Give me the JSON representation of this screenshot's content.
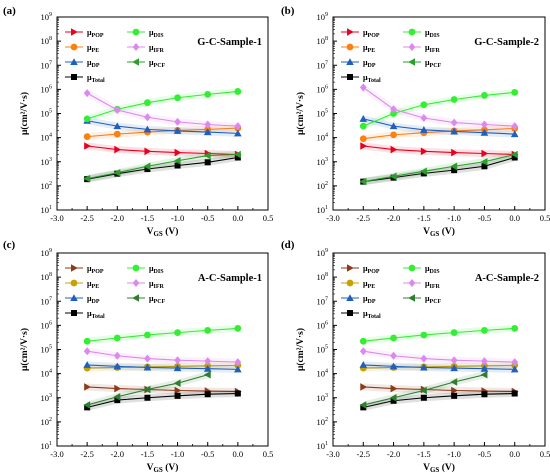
{
  "chart_data": [
    {
      "type": "line",
      "panel_label": "(a)",
      "title": "G-C-Sample-1",
      "xlabel": "V_GS (V)",
      "ylabel": "μ(cm²/V·s)",
      "xlim": [
        -3.0,
        0.5
      ],
      "ylim_log10": [
        1,
        9
      ],
      "y_scale": "log",
      "x_ticks": [
        "-3.0",
        "-2.5",
        "-2.0",
        "-1.5",
        "-1.0",
        "-0.5",
        "0.0",
        "0.5"
      ],
      "y_ticks": [
        1,
        2,
        3,
        4,
        5,
        6,
        7,
        8,
        9
      ],
      "x": [
        -2.5,
        -2.0,
        -1.5,
        -1.0,
        -0.5,
        0.0
      ],
      "legend_position": "top-left",
      "series": [
        {
          "name": "μPOP",
          "base": "μ",
          "sub": "POP",
          "color": "#e8001f",
          "marker": "tri-right",
          "values": [
            4500,
            3200,
            2700,
            2400,
            2200,
            2000
          ]
        },
        {
          "name": "μPE",
          "base": "μ",
          "sub": "PE",
          "color": "#ff7f0e",
          "marker": "circle",
          "values": [
            11000,
            14000,
            17000,
            20000,
            22000,
            25000
          ]
        },
        {
          "name": "μDP",
          "base": "μ",
          "sub": "DP",
          "color": "#1f5fbf",
          "marker": "tri-up",
          "values": [
            50000,
            30000,
            22000,
            19000,
            17000,
            15000
          ]
        },
        {
          "name": "μTotal",
          "base": "μ",
          "sub": "Total",
          "color": "#000000",
          "marker": "square",
          "values": [
            190,
            320,
            500,
            700,
            950,
            1500
          ]
        },
        {
          "name": "μDIS",
          "base": "μ",
          "sub": "DIS",
          "color": "#33ee33",
          "marker": "circle",
          "values": [
            60000,
            150000,
            280000,
            450000,
            620000,
            820000
          ]
        },
        {
          "name": "μIFR",
          "base": "μ",
          "sub": "IFR",
          "color": "#dd88ee",
          "marker": "diamond",
          "values": [
            700000,
            140000,
            70000,
            45000,
            35000,
            30000
          ]
        },
        {
          "name": "μPCF",
          "base": "μ",
          "sub": "PCF",
          "color": "#2aa02a",
          "marker": "tri-left",
          "values": [
            200,
            350,
            650,
            1100,
            1800,
            2000
          ]
        }
      ]
    },
    {
      "type": "line",
      "panel_label": "(b)",
      "title": "G-C-Sample-2",
      "xlabel": "V_GS (V)",
      "ylabel": "μ(cm²/V·s)",
      "xlim": [
        -3.0,
        0.5
      ],
      "ylim_log10": [
        1,
        9
      ],
      "y_scale": "log",
      "x_ticks": [
        "-3.0",
        "-2.5",
        "-2.0",
        "-1.5",
        "-1.0",
        "-0.5",
        "0.0",
        "0.5"
      ],
      "y_ticks": [
        1,
        2,
        3,
        4,
        5,
        6,
        7,
        8,
        9
      ],
      "x": [
        -2.5,
        -2.0,
        -1.5,
        -1.0,
        -0.5,
        0.0
      ],
      "legend_position": "top-left",
      "series": [
        {
          "name": "μPOP",
          "base": "μ",
          "sub": "POP",
          "color": "#e8001f",
          "marker": "tri-right",
          "values": [
            4500,
            3200,
            2700,
            2400,
            2200,
            2000
          ]
        },
        {
          "name": "μPE",
          "base": "μ",
          "sub": "PE",
          "color": "#ff7f0e",
          "marker": "circle",
          "values": [
            9000,
            13000,
            16000,
            19000,
            21000,
            24000
          ]
        },
        {
          "name": "μDP",
          "base": "μ",
          "sub": "DP",
          "color": "#1f5fbf",
          "marker": "tri-up",
          "values": [
            60000,
            30000,
            21000,
            18000,
            16000,
            14000
          ]
        },
        {
          "name": "μTotal",
          "base": "μ",
          "sub": "Total",
          "color": "#000000",
          "marker": "square",
          "values": [
            150,
            220,
            330,
            450,
            650,
            1500
          ]
        },
        {
          "name": "μDIS",
          "base": "μ",
          "sub": "DIS",
          "color": "#33ee33",
          "marker": "circle",
          "values": [
            30000,
            100000,
            230000,
            380000,
            560000,
            750000
          ]
        },
        {
          "name": "μIFR",
          "base": "μ",
          "sub": "IFR",
          "color": "#dd88ee",
          "marker": "diamond",
          "values": [
            1200000,
            150000,
            65000,
            42000,
            35000,
            30000
          ]
        },
        {
          "name": "μPCF",
          "base": "μ",
          "sub": "PCF",
          "color": "#2aa02a",
          "marker": "tri-left",
          "values": [
            150,
            250,
            400,
            650,
            1000,
            2000
          ]
        }
      ]
    },
    {
      "type": "line",
      "panel_label": "(c)",
      "title": "A-C-Sample-1",
      "xlabel": "V_GS (V)",
      "ylabel": "μ(cm²/V·s)",
      "xlim": [
        -3.0,
        0.5
      ],
      "ylim_log10": [
        1,
        9
      ],
      "y_scale": "log",
      "x_ticks": [
        "-3.0",
        "-2.5",
        "-2.0",
        "-1.5",
        "-1.0",
        "-0.5",
        "0.0",
        "0.5"
      ],
      "y_ticks": [
        1,
        2,
        3,
        4,
        5,
        6,
        7,
        8,
        9
      ],
      "x": [
        -2.5,
        -2.0,
        -1.5,
        -1.0,
        -0.5,
        0.0
      ],
      "legend_position": "top-left",
      "series": [
        {
          "name": "μPOP",
          "base": "μ",
          "sub": "POP",
          "color": "#8b3a1a",
          "marker": "tri-right",
          "values": [
            2800,
            2400,
            2200,
            2000,
            1900,
            1800
          ]
        },
        {
          "name": "μPE",
          "base": "μ",
          "sub": "PE",
          "color": "#c8a000",
          "marker": "circle",
          "values": [
            17000,
            18000,
            19000,
            20000,
            21000,
            22000
          ]
        },
        {
          "name": "μDP",
          "base": "μ",
          "sub": "DP",
          "color": "#1f5fbf",
          "marker": "tri-up",
          "values": [
            23000,
            20000,
            18000,
            17000,
            16000,
            15000
          ]
        },
        {
          "name": "μTotal",
          "base": "μ",
          "sub": "Total",
          "color": "#000000",
          "marker": "square",
          "values": [
            400,
            800,
            1000,
            1200,
            1400,
            1500
          ]
        },
        {
          "name": "μDIS",
          "base": "μ",
          "sub": "DIS",
          "color": "#33ee33",
          "marker": "circle",
          "values": [
            220000,
            300000,
            400000,
            500000,
            620000,
            750000
          ]
        },
        {
          "name": "μIFR",
          "base": "μ",
          "sub": "IFR",
          "color": "#dd88ee",
          "marker": "diamond",
          "values": [
            85000,
            55000,
            42000,
            36000,
            33000,
            30000
          ]
        },
        {
          "name": "μPCF",
          "base": "μ",
          "sub": "PCF",
          "color": "#2f7d2f",
          "marker": "tri-left",
          "values": [
            500,
            1100,
            2200,
            4000,
            9000,
            null
          ]
        }
      ]
    },
    {
      "type": "line",
      "panel_label": "(d)",
      "title": "A-C-Sample-2",
      "xlabel": "V_GS (V)",
      "ylabel": "μ(cm²/V·s)",
      "xlim": [
        -3.0,
        0.5
      ],
      "ylim_log10": [
        1,
        9
      ],
      "y_scale": "log",
      "x_ticks": [
        "-3.0",
        "-2.5",
        "-2.0",
        "-1.5",
        "-1.0",
        "-0.5",
        "0.0",
        "0.5"
      ],
      "y_ticks": [
        1,
        2,
        3,
        4,
        5,
        6,
        7,
        8,
        9
      ],
      "x": [
        -2.5,
        -2.0,
        -1.5,
        -1.0,
        -0.5,
        0.0
      ],
      "legend_position": "top-left",
      "series": [
        {
          "name": "μPOP",
          "base": "μ",
          "sub": "POP",
          "color": "#8b3a1a",
          "marker": "tri-right",
          "values": [
            2800,
            2400,
            2200,
            2000,
            1900,
            1800
          ]
        },
        {
          "name": "μPE",
          "base": "μ",
          "sub": "PE",
          "color": "#c8a000",
          "marker": "circle",
          "values": [
            17000,
            18000,
            19000,
            20000,
            21000,
            22000
          ]
        },
        {
          "name": "μDP",
          "base": "μ",
          "sub": "DP",
          "color": "#1f5fbf",
          "marker": "tri-up",
          "values": [
            23000,
            20000,
            18000,
            17000,
            16000,
            15000
          ]
        },
        {
          "name": "μTotal",
          "base": "μ",
          "sub": "Total",
          "color": "#000000",
          "marker": "square",
          "values": [
            400,
            750,
            1000,
            1200,
            1400,
            1500
          ]
        },
        {
          "name": "μDIS",
          "base": "μ",
          "sub": "DIS",
          "color": "#33ee33",
          "marker": "circle",
          "values": [
            220000,
            300000,
            400000,
            500000,
            620000,
            750000
          ]
        },
        {
          "name": "μIFR",
          "base": "μ",
          "sub": "IFR",
          "color": "#dd88ee",
          "marker": "diamond",
          "values": [
            85000,
            55000,
            42000,
            36000,
            33000,
            30000
          ]
        },
        {
          "name": "μPCF",
          "base": "μ",
          "sub": "PCF",
          "color": "#2f7d2f",
          "marker": "tri-left",
          "values": [
            500,
            1000,
            2000,
            4500,
            9000,
            null
          ]
        }
      ]
    }
  ]
}
